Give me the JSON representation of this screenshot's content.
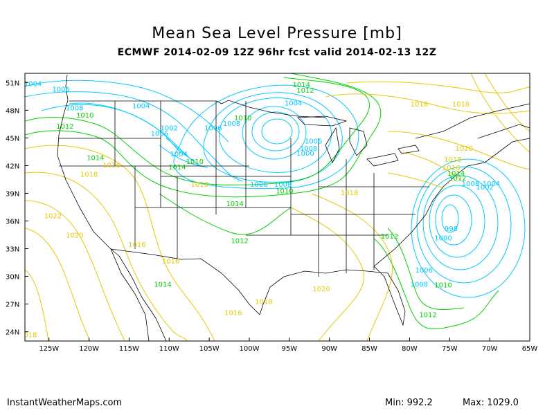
{
  "title": "Mean Sea Level Pressure [mb]",
  "subtitle": "ECMWF 2014-02-09 12Z 96hr fcst valid 2014-02-13 12Z",
  "credit": "InstantWeatherMaps.com",
  "min_label": "Min:  992.2",
  "max_label": "Max: 1029.0",
  "lat_labels": [
    "51N",
    "48N",
    "45N",
    "42N",
    "39N",
    "36N",
    "33N",
    "30N",
    "27N",
    "24N"
  ],
  "lon_labels": [
    "125W",
    "120W",
    "115W",
    "110W",
    "105W",
    "100W",
    "95W",
    "90W",
    "85W",
    "80W",
    "75W",
    "70W",
    "65W"
  ],
  "map_extent": {
    "lon_min": -128,
    "lon_max": -65,
    "lat_min": 23,
    "lat_max": 52
  },
  "colors": {
    "low": "#00c8ff",
    "mid": "#00d000",
    "high": "#e6c800"
  },
  "contour_labels": [
    {
      "text": "1004",
      "lon": -127,
      "lat": 50.6
    },
    {
      "text": "1006",
      "lon": -123.5,
      "lat": 50.0
    },
    {
      "text": "1004",
      "lon": -113.5,
      "lat": 48.2
    },
    {
      "text": "1008",
      "lon": -121.8,
      "lat": 48.0
    },
    {
      "text": "1010",
      "lon": -120.5,
      "lat": 47.2
    },
    {
      "text": "1012",
      "lon": -123,
      "lat": 46.0
    },
    {
      "text": "1002",
      "lon": -110,
      "lat": 45.8
    },
    {
      "text": "1006",
      "lon": -111.2,
      "lat": 45.2
    },
    {
      "text": "1004",
      "lon": -108.8,
      "lat": 43.0
    },
    {
      "text": "1014",
      "lon": -119.2,
      "lat": 42.6
    },
    {
      "text": "1016",
      "lon": -117.2,
      "lat": 41.8
    },
    {
      "text": "1010",
      "lon": -106.8,
      "lat": 42.2
    },
    {
      "text": "1014",
      "lon": -109,
      "lat": 41.6
    },
    {
      "text": "1018",
      "lon": -120,
      "lat": 40.8
    },
    {
      "text": "1016",
      "lon": -106.2,
      "lat": 39.7
    },
    {
      "text": "1022",
      "lon": -124.5,
      "lat": 36.3
    },
    {
      "text": "1020",
      "lon": -121.8,
      "lat": 34.2
    },
    {
      "text": "1016",
      "lon": -114,
      "lat": 33.2
    },
    {
      "text": "1016",
      "lon": -109.8,
      "lat": 31.4
    },
    {
      "text": "1014",
      "lon": -110.8,
      "lat": 28.9
    },
    {
      "text": "1012",
      "lon": -101.2,
      "lat": 33.6
    },
    {
      "text": "1014",
      "lon": -101.8,
      "lat": 37.6
    },
    {
      "text": "1016",
      "lon": -102,
      "lat": 25.8
    },
    {
      "text": "1018",
      "lon": -98.2,
      "lat": 27.0
    },
    {
      "text": "1020",
      "lon": -91,
      "lat": 28.4
    },
    {
      "text": "1018",
      "lon": -127.6,
      "lat": 23.4
    },
    {
      "text": "1006",
      "lon": -98.8,
      "lat": 39.7
    },
    {
      "text": "1008",
      "lon": -95.8,
      "lat": 39.7
    },
    {
      "text": "1010",
      "lon": -95.6,
      "lat": 39.0
    },
    {
      "text": "1018",
      "lon": -87.5,
      "lat": 38.8
    },
    {
      "text": "1012",
      "lon": -82.5,
      "lat": 34.1
    },
    {
      "text": "1014",
      "lon": -93.5,
      "lat": 50.5
    },
    {
      "text": "1012",
      "lon": -93,
      "lat": 49.9
    },
    {
      "text": "1004",
      "lon": -94.5,
      "lat": 48.5
    },
    {
      "text": "1010",
      "lon": -100.8,
      "lat": 46.9
    },
    {
      "text": "1008",
      "lon": -102.2,
      "lat": 46.3
    },
    {
      "text": "1006",
      "lon": -104.5,
      "lat": 45.8
    },
    {
      "text": "1006",
      "lon": -92,
      "lat": 44.4
    },
    {
      "text": "1008",
      "lon": -92.6,
      "lat": 43.6
    },
    {
      "text": "1000",
      "lon": -93,
      "lat": 43.1
    },
    {
      "text": "1016",
      "lon": -78.8,
      "lat": 48.4
    },
    {
      "text": "1018",
      "lon": -73.6,
      "lat": 48.4
    },
    {
      "text": "1020",
      "lon": -73.2,
      "lat": 43.6
    },
    {
      "text": "1018",
      "lon": -74.6,
      "lat": 42.4
    },
    {
      "text": "1016",
      "lon": -74.8,
      "lat": 41.5
    },
    {
      "text": "1014",
      "lon": -74.2,
      "lat": 40.9
    },
    {
      "text": "1012",
      "lon": -74.0,
      "lat": 40.4
    },
    {
      "text": "1008",
      "lon": -72.4,
      "lat": 39.8
    },
    {
      "text": "1004",
      "lon": -69.8,
      "lat": 39.8
    },
    {
      "text": "1002",
      "lon": -70.6,
      "lat": 39.4
    },
    {
      "text": "998",
      "lon": -74.8,
      "lat": 34.9
    },
    {
      "text": "1000",
      "lon": -75.8,
      "lat": 33.9
    },
    {
      "text": "1006",
      "lon": -78.2,
      "lat": 30.4
    },
    {
      "text": "1008",
      "lon": -78.8,
      "lat": 28.9
    },
    {
      "text": "1010",
      "lon": -75.8,
      "lat": 28.8
    },
    {
      "text": "1012",
      "lon": -77.7,
      "lat": 25.6
    }
  ]
}
